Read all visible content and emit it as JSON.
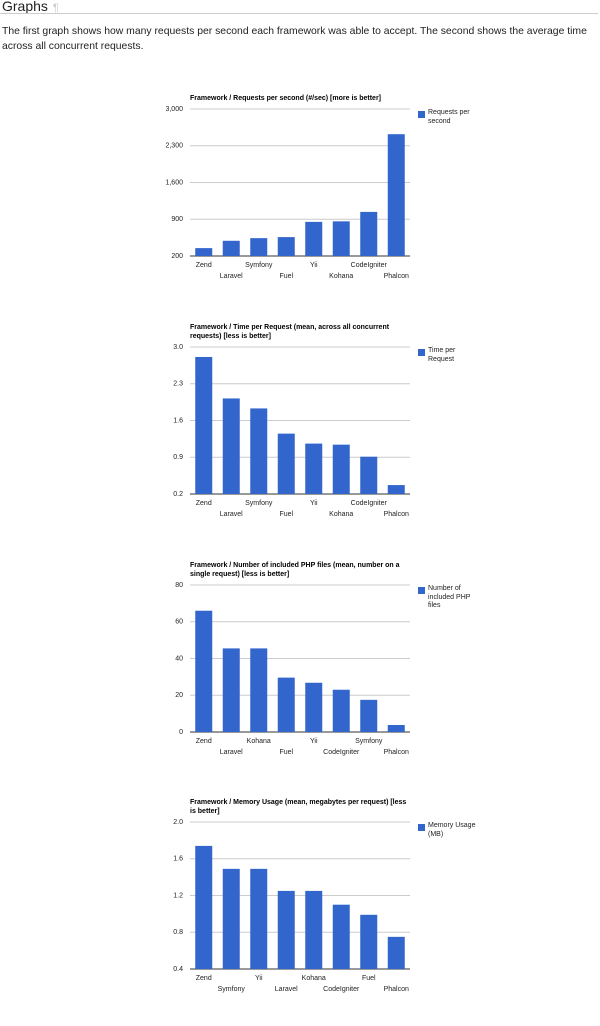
{
  "heading": {
    "title": "Graphs",
    "anchor": "¶"
  },
  "intro": "The first graph shows how many requests per second each framework was able to accept. The second shows the average time across all concurrent requests.",
  "chart_data": [
    {
      "type": "bar",
      "title": "Framework / Requests per second (#/sec) [more is better]",
      "categories": [
        "Zend",
        "Laravel",
        "Symfony",
        "Fuel",
        "Yii",
        "Kohana",
        "CodeIgniter",
        "Phalcon"
      ],
      "series": [
        {
          "name": "Requests per second",
          "color": "#3366cc",
          "values": [
            350,
            490,
            540,
            560,
            850,
            860,
            1040,
            2520
          ]
        }
      ],
      "ylim": [
        200,
        3000
      ],
      "yticks": [
        200,
        900,
        {
          "value": 1600,
          "label": "1,600"
        },
        {
          "value": 2300,
          "label": "2,300"
        },
        {
          "value": 3000,
          "label": "3,000"
        }
      ],
      "grid": true
    },
    {
      "type": "bar",
      "title": "Framework / Time per Request (mean, across all concurrent requests) [less is better]",
      "categories": [
        "Zend",
        "Laravel",
        "Symfony",
        "Fuel",
        "Yii",
        "Kohana",
        "CodeIgniter",
        "Phalcon"
      ],
      "series": [
        {
          "name": "Time per Request",
          "color": "#3366cc",
          "values": [
            2.81,
            2.02,
            1.83,
            1.35,
            1.16,
            1.14,
            0.91,
            0.37
          ]
        }
      ],
      "ylim": [
        0.2,
        3.0
      ],
      "yticks": [
        0.2,
        0.9,
        1.6,
        2.3,
        {
          "value": 3.0,
          "label": "3.0"
        }
      ],
      "grid": true
    },
    {
      "type": "bar",
      "title": "Framework / Number of included PHP files (mean, number on a single request) [less is better]",
      "categories": [
        "Zend",
        "Laravel",
        "Kohana",
        "Fuel",
        "Yii",
        "CodeIgniter",
        "Symfony",
        "Phalcon"
      ],
      "series": [
        {
          "name": "Number of included PHP files",
          "color": "#3366cc",
          "values": [
            66,
            45.5,
            45.5,
            29.6,
            26.8,
            23,
            17.5,
            3.8
          ]
        }
      ],
      "ylim": [
        0,
        80
      ],
      "yticks": [
        0,
        20,
        40,
        60,
        80
      ],
      "grid": true
    },
    {
      "type": "bar",
      "title": "Framework / Memory Usage (mean, megabytes per request) [less is better]",
      "categories": [
        "Zend",
        "Symfony",
        "Yii",
        "Laravel",
        "Kohana",
        "CodeIgniter",
        "Fuel",
        "Phalcon"
      ],
      "series": [
        {
          "name": "Memory Usage (MB)",
          "color": "#3366cc",
          "values": [
            1.74,
            1.49,
            1.49,
            1.25,
            1.25,
            1.1,
            0.99,
            0.75
          ]
        }
      ],
      "ylim": [
        0.4,
        2.0
      ],
      "yticks": [
        0.4,
        0.8,
        1.2,
        1.6,
        {
          "value": 2.0,
          "label": "2.0"
        }
      ],
      "grid": true
    }
  ]
}
